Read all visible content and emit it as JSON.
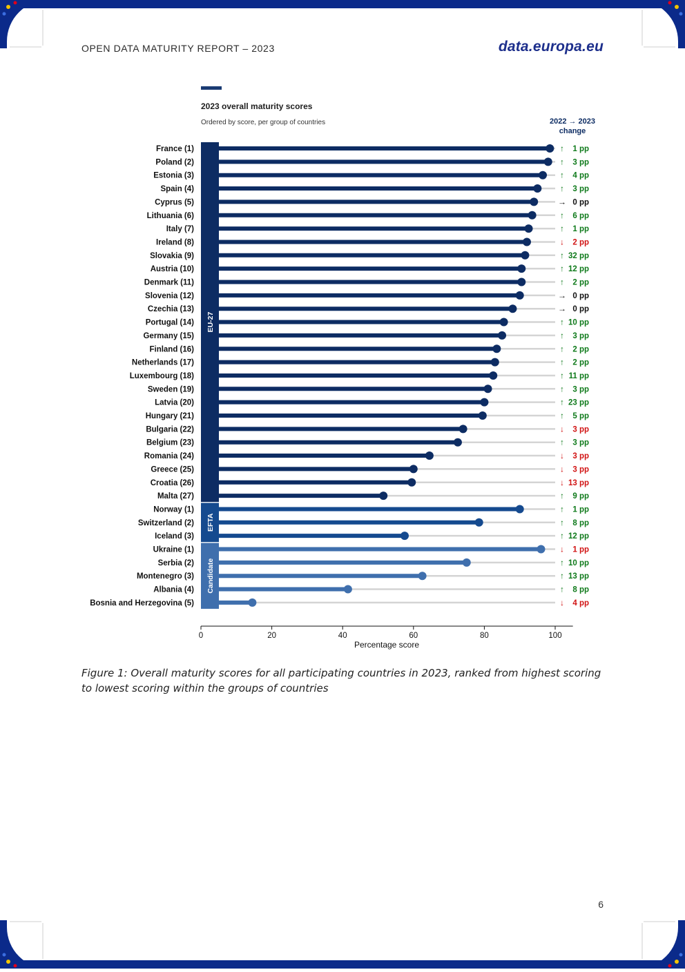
{
  "header": {
    "report_title": "OPEN DATA MATURITY REPORT – 2023",
    "brand": "data.europa.eu"
  },
  "chart_data": {
    "type": "lollipop",
    "title": "2023 overall maturity scores",
    "subtitle": "Ordered by score, per group of countries",
    "change_header_line1": "2022 → 2023",
    "change_header_line2": "change",
    "xlabel": "Percentage score",
    "xlim": [
      0,
      105
    ],
    "xticks": [
      0,
      20,
      40,
      60,
      80,
      100
    ],
    "groups": [
      {
        "name": "EU-27",
        "color": "#0d2c63",
        "rows": [
          {
            "label": "France (1)",
            "value": 98.5,
            "change": "1 pp",
            "direction": "up"
          },
          {
            "label": "Poland (2)",
            "value": 98.0,
            "change": "3 pp",
            "direction": "up"
          },
          {
            "label": "Estonia (3)",
            "value": 96.5,
            "change": "4 pp",
            "direction": "up"
          },
          {
            "label": "Spain (4)",
            "value": 95.0,
            "change": "3 pp",
            "direction": "up"
          },
          {
            "label": "Cyprus (5)",
            "value": 94.0,
            "change": "0 pp",
            "direction": "flat"
          },
          {
            "label": "Lithuania (6)",
            "value": 93.5,
            "change": "6 pp",
            "direction": "up"
          },
          {
            "label": "Italy (7)",
            "value": 92.5,
            "change": "1 pp",
            "direction": "up"
          },
          {
            "label": "Ireland (8)",
            "value": 92.0,
            "change": "2 pp",
            "direction": "down"
          },
          {
            "label": "Slovakia (9)",
            "value": 91.5,
            "change": "32 pp",
            "direction": "up"
          },
          {
            "label": "Austria (10)",
            "value": 90.5,
            "change": "12 pp",
            "direction": "up"
          },
          {
            "label": "Denmark (11)",
            "value": 90.5,
            "change": "2 pp",
            "direction": "up"
          },
          {
            "label": "Slovenia (12)",
            "value": 90.0,
            "change": "0 pp",
            "direction": "flat"
          },
          {
            "label": "Czechia (13)",
            "value": 88.0,
            "change": "0 pp",
            "direction": "flat"
          },
          {
            "label": "Portugal (14)",
            "value": 85.5,
            "change": "10 pp",
            "direction": "up"
          },
          {
            "label": "Germany (15)",
            "value": 85.0,
            "change": "3 pp",
            "direction": "up"
          },
          {
            "label": "Finland (16)",
            "value": 83.5,
            "change": "2 pp",
            "direction": "up"
          },
          {
            "label": "Netherlands (17)",
            "value": 83.0,
            "change": "2 pp",
            "direction": "up"
          },
          {
            "label": "Luxembourg (18)",
            "value": 82.5,
            "change": "11 pp",
            "direction": "up"
          },
          {
            "label": "Sweden (19)",
            "value": 81.0,
            "change": "3 pp",
            "direction": "up"
          },
          {
            "label": "Latvia (20)",
            "value": 80.0,
            "change": "23 pp",
            "direction": "up"
          },
          {
            "label": "Hungary (21)",
            "value": 79.5,
            "change": "5 pp",
            "direction": "up"
          },
          {
            "label": "Bulgaria (22)",
            "value": 74.0,
            "change": "3 pp",
            "direction": "down"
          },
          {
            "label": "Belgium (23)",
            "value": 72.5,
            "change": "3 pp",
            "direction": "up"
          },
          {
            "label": "Romania (24)",
            "value": 64.5,
            "change": "3 pp",
            "direction": "down"
          },
          {
            "label": "Greece (25)",
            "value": 60.0,
            "change": "3 pp",
            "direction": "down"
          },
          {
            "label": "Croatia (26)",
            "value": 59.5,
            "change": "13 pp",
            "direction": "down"
          },
          {
            "label": "Malta (27)",
            "value": 51.5,
            "change": "9 pp",
            "direction": "up"
          }
        ]
      },
      {
        "name": "EFTA",
        "color": "#154a8f",
        "rows": [
          {
            "label": "Norway (1)",
            "value": 90.0,
            "change": "1 pp",
            "direction": "up"
          },
          {
            "label": "Switzerland (2)",
            "value": 78.5,
            "change": "8 pp",
            "direction": "up"
          },
          {
            "label": "Iceland (3)",
            "value": 57.5,
            "change": "12 pp",
            "direction": "up"
          }
        ]
      },
      {
        "name": "Candidate",
        "color": "#3f6fad",
        "rows": [
          {
            "label": "Ukraine (1)",
            "value": 96.0,
            "change": "1 pp",
            "direction": "down"
          },
          {
            "label": "Serbia (2)",
            "value": 75.0,
            "change": "10 pp",
            "direction": "up"
          },
          {
            "label": "Montenegro (3)",
            "value": 62.5,
            "change": "13 pp",
            "direction": "up"
          },
          {
            "label": "Albania (4)",
            "value": 41.5,
            "change": "8 pp",
            "direction": "up"
          },
          {
            "label": "Bosnia and Herzegovina (5)",
            "value": 14.5,
            "change": "4 pp",
            "direction": "down"
          }
        ]
      }
    ],
    "colors": {
      "up": "#0f7a1b",
      "down": "#d11414",
      "flat": "#111111",
      "track": "#d4d4d4",
      "accent": "#1a3b73"
    }
  },
  "figure_caption": "Figure 1: Overall maturity scores for all participating countries in 2023, ranked from highest scoring to lowest scoring within the groups of countries",
  "page_number": "6"
}
